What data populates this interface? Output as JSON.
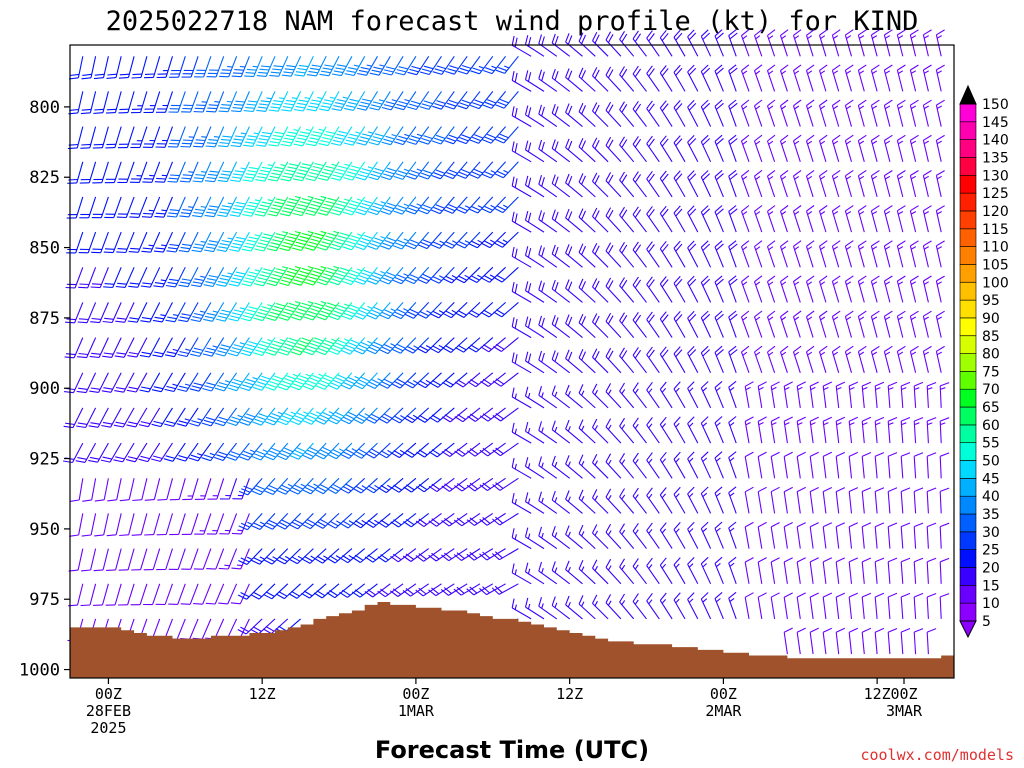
{
  "chart_data": {
    "type": "wind-profile",
    "title": "2025022718 NAM forecast wind profile (kt) for KIND",
    "xlabel": "Forecast Time (UTC)",
    "ylabel": "",
    "credit": "coolwx.com/models",
    "y_axis": {
      "units": "hPa",
      "ylim": [
        1003,
        778
      ],
      "ticks": [
        "800",
        "825",
        "850",
        "875",
        "900",
        "925",
        "950",
        "975",
        "1000"
      ]
    },
    "x_axis": {
      "units": "forecast hour",
      "xlim": [
        -3,
        66
      ],
      "ticks": [
        {
          "hour": 0,
          "lines": [
            "00Z",
            "28FEB",
            "2025"
          ]
        },
        {
          "hour": 12,
          "lines": [
            "12Z"
          ]
        },
        {
          "hour": 24,
          "lines": [
            "00Z",
            "1MAR"
          ]
        },
        {
          "hour": 36,
          "lines": [
            "12Z"
          ]
        },
        {
          "hour": 48,
          "lines": [
            "00Z",
            "2MAR"
          ]
        },
        {
          "hour": 60,
          "lines": [
            "12Z"
          ]
        },
        {
          "hour": 72,
          "lines": [
            "00Z",
            "3MAR"
          ]
        }
      ]
    },
    "colorbar": {
      "units": "kt",
      "labels": [
        "150",
        "145",
        "140",
        "135",
        "130",
        "125",
        "120",
        "115",
        "110",
        "105",
        "100",
        "95",
        "90",
        "85",
        "80",
        "75",
        "70",
        "65",
        "60",
        "55",
        "50",
        "45",
        "40",
        "35",
        "30",
        "25",
        "20",
        "15",
        "10",
        "5"
      ],
      "colors": [
        "#8b00ff",
        "#6a00ff",
        "#3a00ff",
        "#0010ff",
        "#0038ff",
        "#0060ff",
        "#0088ff",
        "#00b0ff",
        "#00d8ff",
        "#00ffd8",
        "#00ffa0",
        "#00ff60",
        "#00ff20",
        "#60ff00",
        "#a0ff00",
        "#d8ff00",
        "#ffff00",
        "#ffe000",
        "#ffc000",
        "#ffa000",
        "#ff8000",
        "#ff6000",
        "#ff4000",
        "#ff2000",
        "#ff0000",
        "#ff0040",
        "#ff0080",
        "#ff00b0",
        "#ff00d8",
        "#ff00ff"
      ]
    },
    "terrain": {
      "color": "#a0522d",
      "surface_pressure": [
        {
          "hour": -3,
          "p": 985
        },
        {
          "hour": 0,
          "p": 985
        },
        {
          "hour": 3,
          "p": 988
        },
        {
          "hour": 6,
          "p": 989
        },
        {
          "hour": 9,
          "p": 988
        },
        {
          "hour": 13,
          "p": 986
        },
        {
          "hour": 18,
          "p": 980
        },
        {
          "hour": 21,
          "p": 976
        },
        {
          "hour": 23,
          "p": 977
        },
        {
          "hour": 27,
          "p": 979
        },
        {
          "hour": 33,
          "p": 984
        },
        {
          "hour": 39,
          "p": 990
        },
        {
          "hour": 45,
          "p": 992
        },
        {
          "hour": 51,
          "p": 995
        },
        {
          "hour": 55,
          "p": 996
        },
        {
          "hour": 63,
          "p": 996
        },
        {
          "hour": 67,
          "p": 994
        },
        {
          "hour": 69,
          "p": 993
        },
        {
          "hour": 75,
          "p": 994
        },
        {
          "hour": 78,
          "p": 993
        }
      ]
    }
  }
}
